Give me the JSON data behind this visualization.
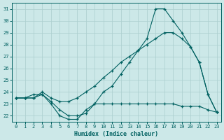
{
  "xlabel": "Humidex (Indice chaleur)",
  "bg_color": "#cce8e8",
  "grid_color": "#aacece",
  "line_color": "#006060",
  "xlim": [
    -0.5,
    23.5
  ],
  "ylim": [
    21.5,
    31.5
  ],
  "xticks": [
    0,
    1,
    2,
    3,
    4,
    5,
    6,
    7,
    8,
    9,
    10,
    11,
    12,
    13,
    14,
    15,
    16,
    17,
    18,
    19,
    20,
    21,
    22,
    23
  ],
  "yticks": [
    22,
    23,
    24,
    25,
    26,
    27,
    28,
    29,
    30,
    31
  ],
  "line1_x": [
    0,
    1,
    2,
    3,
    4,
    5,
    6,
    7,
    8,
    9,
    10,
    11,
    12,
    13,
    14,
    15,
    16,
    17,
    18,
    19,
    20,
    21,
    22,
    23
  ],
  "line1_y": [
    23.5,
    23.5,
    23.5,
    23.8,
    23.2,
    22.5,
    22.0,
    22.0,
    22.2,
    23.0,
    23.0,
    23.0,
    23.0,
    23.0,
    23.0,
    23.0,
    23.0,
    23.0,
    23.0,
    22.8,
    22.8,
    22.8,
    22.5,
    22.3
  ],
  "line2_x": [
    0,
    1,
    2,
    3,
    4,
    5,
    6,
    7,
    8,
    9,
    10,
    11,
    12,
    13,
    14,
    15,
    16,
    17,
    18,
    19,
    20,
    21,
    22,
    23
  ],
  "line2_y": [
    23.5,
    23.5,
    23.8,
    23.8,
    23.0,
    22.0,
    21.7,
    21.7,
    22.5,
    23.0,
    24.0,
    24.5,
    25.5,
    26.5,
    27.5,
    28.5,
    31.0,
    31.0,
    30.0,
    29.0,
    27.8,
    26.5,
    23.8,
    22.3
  ],
  "line3_x": [
    0,
    1,
    2,
    3,
    4,
    5,
    6,
    7,
    8,
    9,
    10,
    11,
    12,
    13,
    14,
    15,
    16,
    17,
    18,
    19,
    20,
    21,
    22,
    23
  ],
  "line3_y": [
    23.5,
    23.5,
    23.5,
    24.0,
    23.5,
    23.2,
    23.2,
    23.5,
    24.0,
    24.5,
    25.2,
    25.8,
    26.5,
    27.0,
    27.5,
    28.0,
    28.5,
    29.0,
    29.0,
    28.5,
    27.8,
    26.5,
    23.8,
    22.3
  ]
}
